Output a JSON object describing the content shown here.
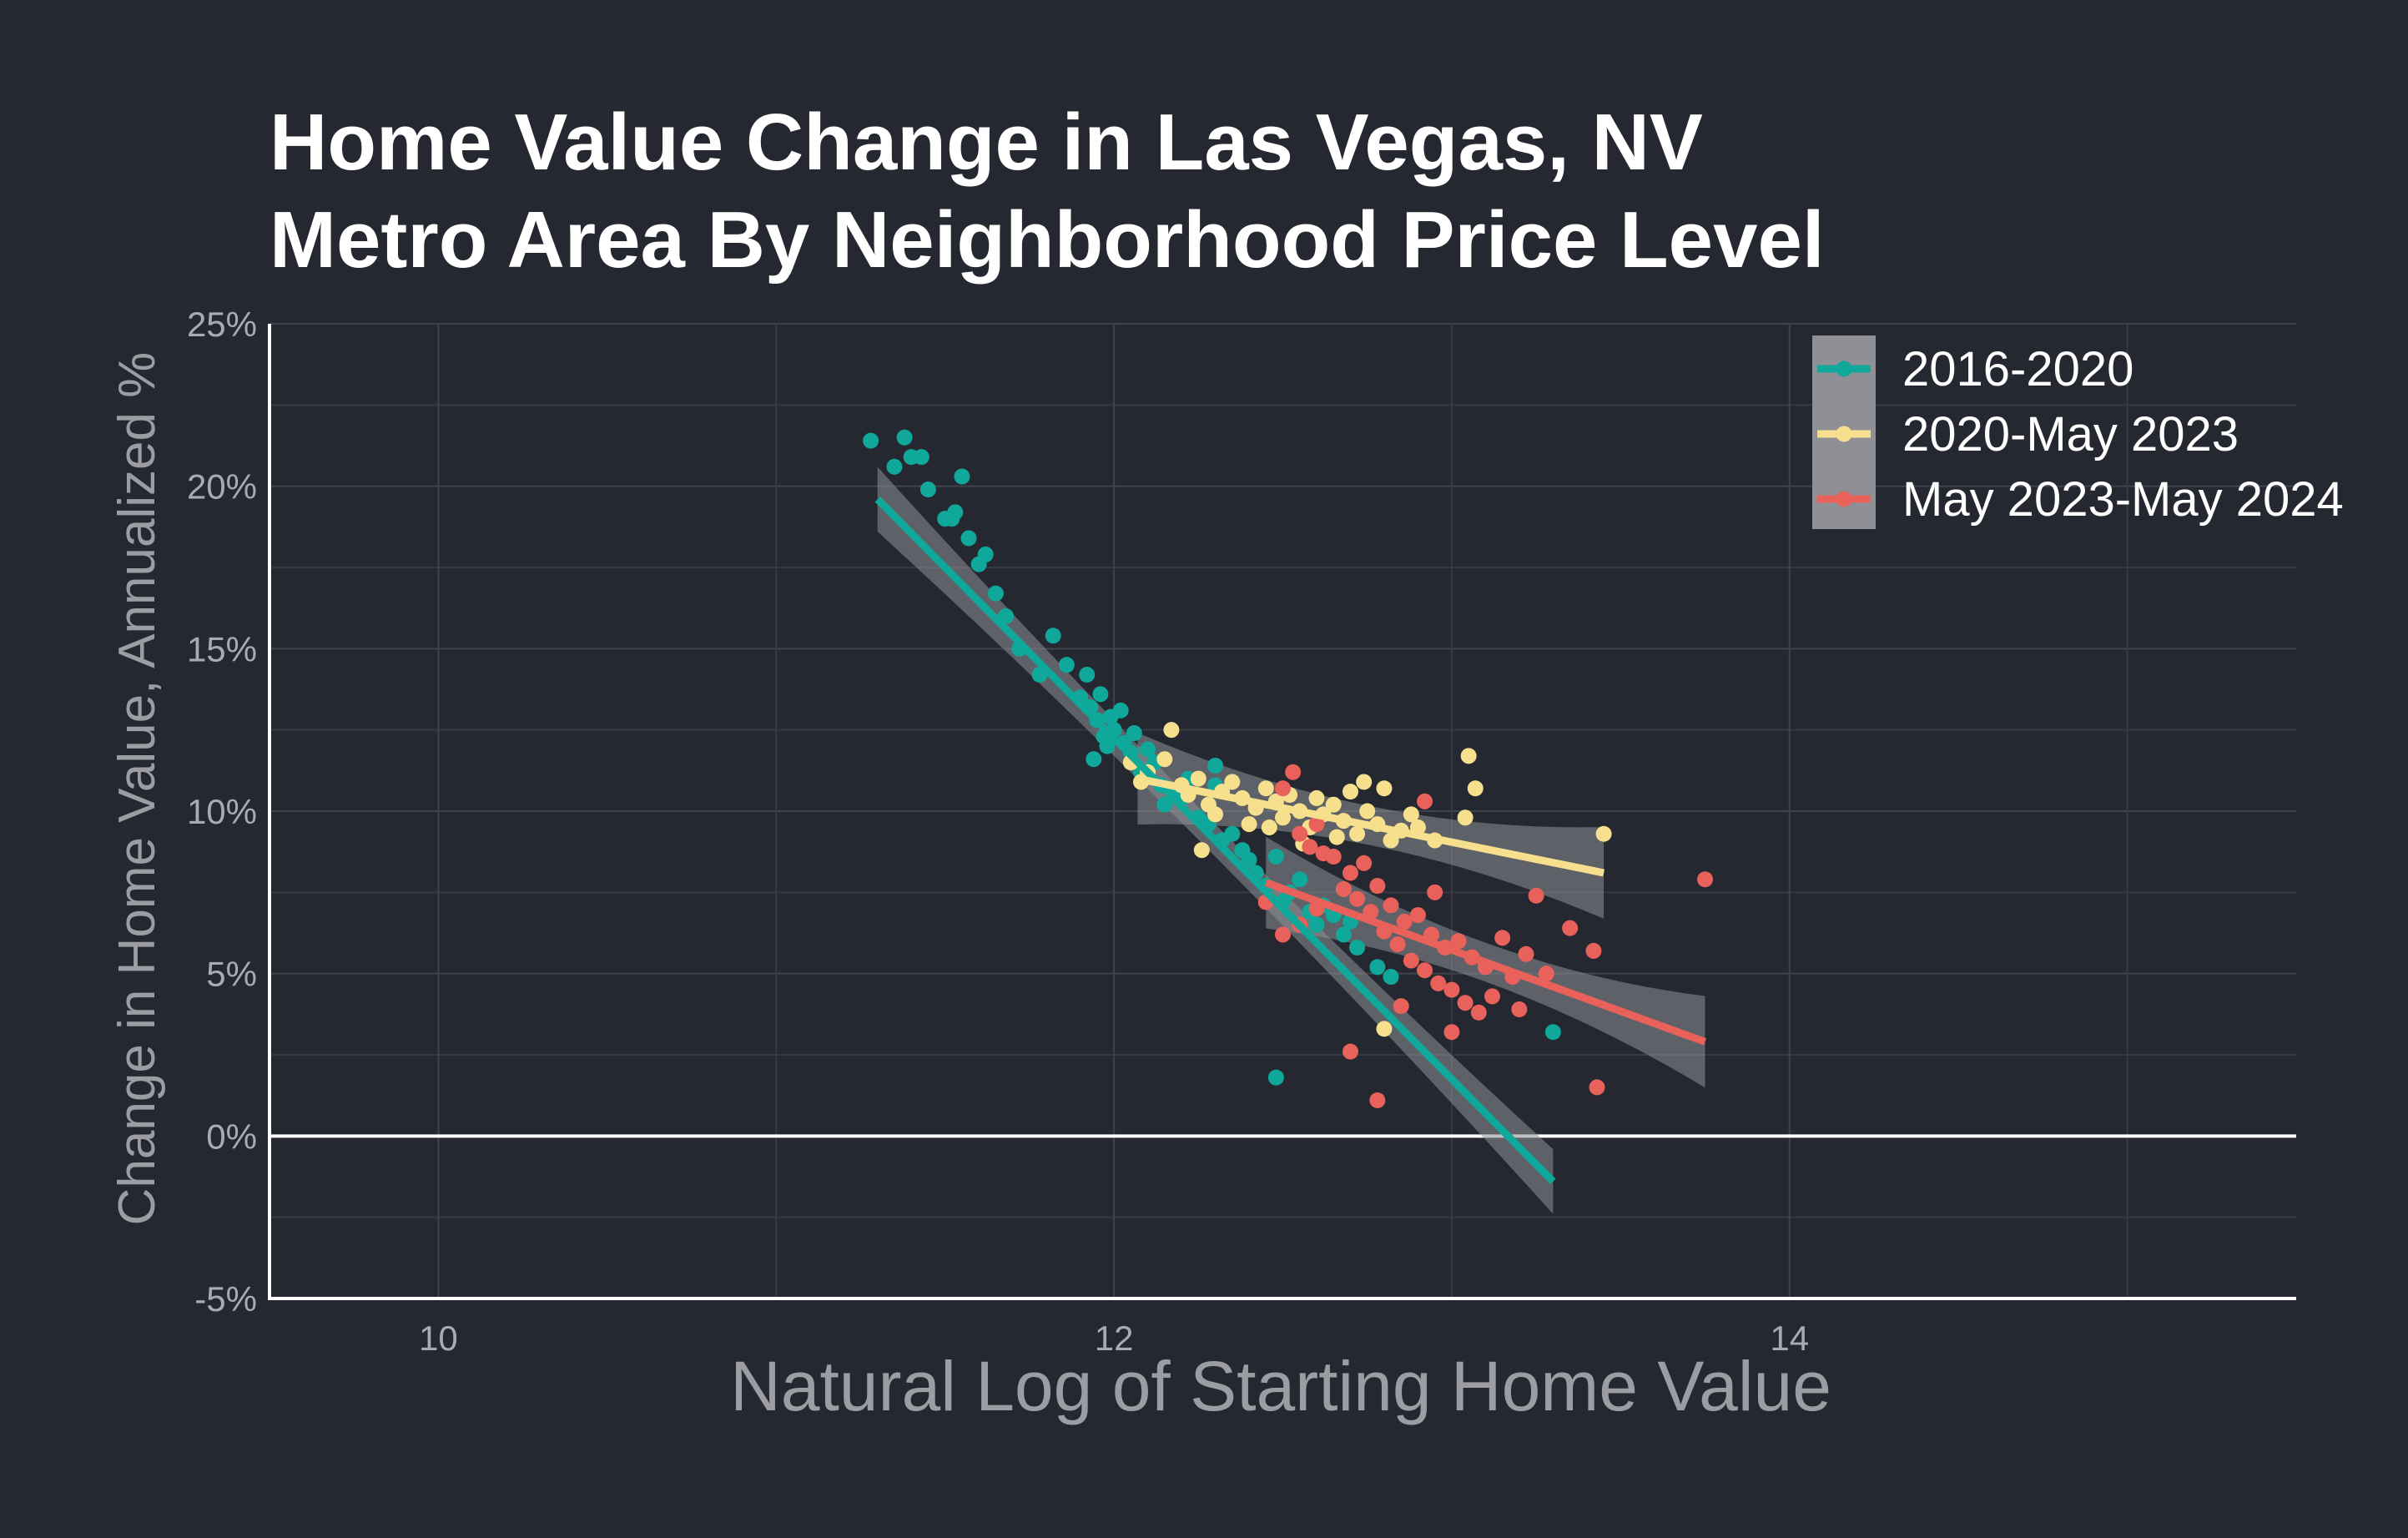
{
  "chart_data": {
    "type": "scatter",
    "title_lines": [
      "Home Value Change in Las Vegas, NV",
      "Metro Area By Neighborhood Price Level"
    ],
    "xlabel": "Natural Log of Starting Home Value",
    "ylabel": "Change in Home Value, Annualized %",
    "xlim": [
      9.5,
      15.5
    ],
    "ylim": [
      -5,
      25
    ],
    "x_ticks": [
      10,
      12,
      14
    ],
    "x_tick_labels": [
      "10",
      "12",
      "14"
    ],
    "y_ticks": [
      -5,
      0,
      5,
      10,
      15,
      20,
      25
    ],
    "y_tick_labels": [
      "-5%",
      "0%",
      "5%",
      "10%",
      "15%",
      "20%",
      "25%"
    ],
    "grid": true,
    "zero_line": true,
    "legend_position": "top-right",
    "background": "#252830",
    "series": [
      {
        "name": "2016-2020",
        "color": "#0fa89a",
        "trend": {
          "x": [
            11.3,
            13.3
          ],
          "y": [
            19.6,
            -1.4
          ]
        },
        "points": [
          [
            11.28,
            21.4
          ],
          [
            11.35,
            20.6
          ],
          [
            11.38,
            21.5
          ],
          [
            11.4,
            20.9
          ],
          [
            11.43,
            20.9
          ],
          [
            11.45,
            19.9
          ],
          [
            11.5,
            19.0
          ],
          [
            11.52,
            19.0
          ],
          [
            11.55,
            20.3
          ],
          [
            11.57,
            18.4
          ],
          [
            11.53,
            19.2
          ],
          [
            11.6,
            17.6
          ],
          [
            11.62,
            17.9
          ],
          [
            11.65,
            16.7
          ],
          [
            11.68,
            16.0
          ],
          [
            11.72,
            15.0
          ],
          [
            11.78,
            14.2
          ],
          [
            11.82,
            15.4
          ],
          [
            11.86,
            14.5
          ],
          [
            11.9,
            13.5
          ],
          [
            11.92,
            14.2
          ],
          [
            11.93,
            13.2
          ],
          [
            11.95,
            12.8
          ],
          [
            11.96,
            13.6
          ],
          [
            11.97,
            12.3
          ],
          [
            11.98,
            12.0
          ],
          [
            11.99,
            12.9
          ],
          [
            12.0,
            12.5
          ],
          [
            12.02,
            13.1
          ],
          [
            12.03,
            12.1
          ],
          [
            11.94,
            11.6
          ],
          [
            12.05,
            11.8
          ],
          [
            12.06,
            12.4
          ],
          [
            12.08,
            11.2
          ],
          [
            12.1,
            11.9
          ],
          [
            12.12,
            11.5
          ],
          [
            12.14,
            10.8
          ],
          [
            12.15,
            10.2
          ],
          [
            12.18,
            10.6
          ],
          [
            12.2,
            10.4
          ],
          [
            12.22,
            11.0
          ],
          [
            12.25,
            9.8
          ],
          [
            12.28,
            9.6
          ],
          [
            12.3,
            11.4
          ],
          [
            12.32,
            9.1
          ],
          [
            12.35,
            9.3
          ],
          [
            12.38,
            8.8
          ],
          [
            12.4,
            8.5
          ],
          [
            12.42,
            8.1
          ],
          [
            12.45,
            7.7
          ],
          [
            12.48,
            8.6
          ],
          [
            12.5,
            7.2
          ],
          [
            12.52,
            7.5
          ],
          [
            12.55,
            7.9
          ],
          [
            12.58,
            6.9
          ],
          [
            12.6,
            6.5
          ],
          [
            12.62,
            7.1
          ],
          [
            12.65,
            6.8
          ],
          [
            12.68,
            6.2
          ],
          [
            12.7,
            6.6
          ],
          [
            12.72,
            5.8
          ],
          [
            12.78,
            5.2
          ],
          [
            12.82,
            4.9
          ],
          [
            12.48,
            1.8
          ],
          [
            13.3,
            3.2
          ],
          [
            12.3,
            10.8
          ]
        ]
      },
      {
        "name": "2020-May 2023",
        "color": "#f6e08e",
        "trend": {
          "x": [
            12.07,
            13.45
          ],
          "y": [
            11.0,
            8.1
          ]
        },
        "points": [
          [
            12.05,
            11.5
          ],
          [
            12.08,
            10.9
          ],
          [
            12.1,
            11.2
          ],
          [
            12.15,
            11.6
          ],
          [
            12.17,
            12.5
          ],
          [
            12.2,
            10.8
          ],
          [
            12.22,
            10.5
          ],
          [
            12.25,
            11.0
          ],
          [
            12.28,
            10.2
          ],
          [
            12.3,
            9.9
          ],
          [
            12.32,
            10.6
          ],
          [
            12.35,
            10.9
          ],
          [
            12.38,
            10.4
          ],
          [
            12.4,
            9.6
          ],
          [
            12.42,
            10.1
          ],
          [
            12.45,
            10.7
          ],
          [
            12.48,
            10.3
          ],
          [
            12.5,
            9.8
          ],
          [
            12.52,
            10.5
          ],
          [
            12.55,
            10.0
          ],
          [
            12.58,
            9.5
          ],
          [
            12.6,
            10.4
          ],
          [
            12.62,
            9.9
          ],
          [
            12.65,
            10.2
          ],
          [
            12.68,
            9.7
          ],
          [
            12.7,
            10.6
          ],
          [
            12.72,
            9.3
          ],
          [
            12.75,
            10.0
          ],
          [
            12.78,
            9.6
          ],
          [
            12.8,
            10.7
          ],
          [
            12.82,
            9.1
          ],
          [
            12.85,
            9.4
          ],
          [
            12.88,
            9.9
          ],
          [
            12.9,
            9.5
          ],
          [
            12.95,
            9.1
          ],
          [
            13.05,
            11.7
          ],
          [
            13.07,
            10.7
          ],
          [
            13.04,
            9.8
          ],
          [
            13.45,
            9.3
          ],
          [
            12.26,
            8.8
          ],
          [
            12.8,
            3.3
          ],
          [
            12.56,
            9.0
          ],
          [
            12.46,
            9.5
          ],
          [
            12.66,
            9.2
          ],
          [
            12.74,
            10.9
          ]
        ]
      },
      {
        "name": "May 2023-May 2024",
        "color": "#e8615a",
        "trend": {
          "x": [
            12.45,
            13.75
          ],
          "y": [
            7.8,
            2.9
          ]
        },
        "points": [
          [
            12.5,
            10.7
          ],
          [
            12.53,
            11.2
          ],
          [
            12.55,
            9.3
          ],
          [
            12.58,
            8.9
          ],
          [
            12.6,
            9.6
          ],
          [
            12.62,
            8.7
          ],
          [
            12.65,
            8.6
          ],
          [
            12.68,
            7.6
          ],
          [
            12.7,
            8.1
          ],
          [
            12.72,
            7.3
          ],
          [
            12.74,
            8.4
          ],
          [
            12.76,
            6.9
          ],
          [
            12.78,
            7.7
          ],
          [
            12.8,
            6.3
          ],
          [
            12.82,
            7.1
          ],
          [
            12.84,
            5.9
          ],
          [
            12.86,
            6.6
          ],
          [
            12.88,
            5.4
          ],
          [
            12.9,
            6.8
          ],
          [
            12.92,
            5.1
          ],
          [
            12.94,
            6.2
          ],
          [
            12.96,
            4.7
          ],
          [
            12.98,
            5.8
          ],
          [
            13.0,
            4.5
          ],
          [
            13.02,
            6.0
          ],
          [
            13.04,
            4.1
          ],
          [
            13.06,
            5.5
          ],
          [
            13.08,
            3.8
          ],
          [
            13.1,
            5.2
          ],
          [
            13.12,
            4.3
          ],
          [
            13.15,
            6.1
          ],
          [
            13.18,
            4.9
          ],
          [
            13.2,
            3.9
          ],
          [
            13.22,
            5.6
          ],
          [
            13.25,
            7.4
          ],
          [
            13.28,
            5.0
          ],
          [
            13.35,
            6.4
          ],
          [
            13.42,
            5.7
          ],
          [
            13.43,
            1.5
          ],
          [
            13.75,
            7.9
          ],
          [
            12.92,
            10.3
          ],
          [
            12.5,
            6.2
          ],
          [
            12.7,
            2.6
          ],
          [
            12.78,
            1.1
          ],
          [
            12.6,
            7.0
          ],
          [
            13.0,
            3.2
          ],
          [
            12.85,
            4.0
          ],
          [
            12.95,
            7.5
          ],
          [
            12.45,
            7.2
          ],
          [
            12.55,
            6.5
          ]
        ]
      }
    ]
  }
}
